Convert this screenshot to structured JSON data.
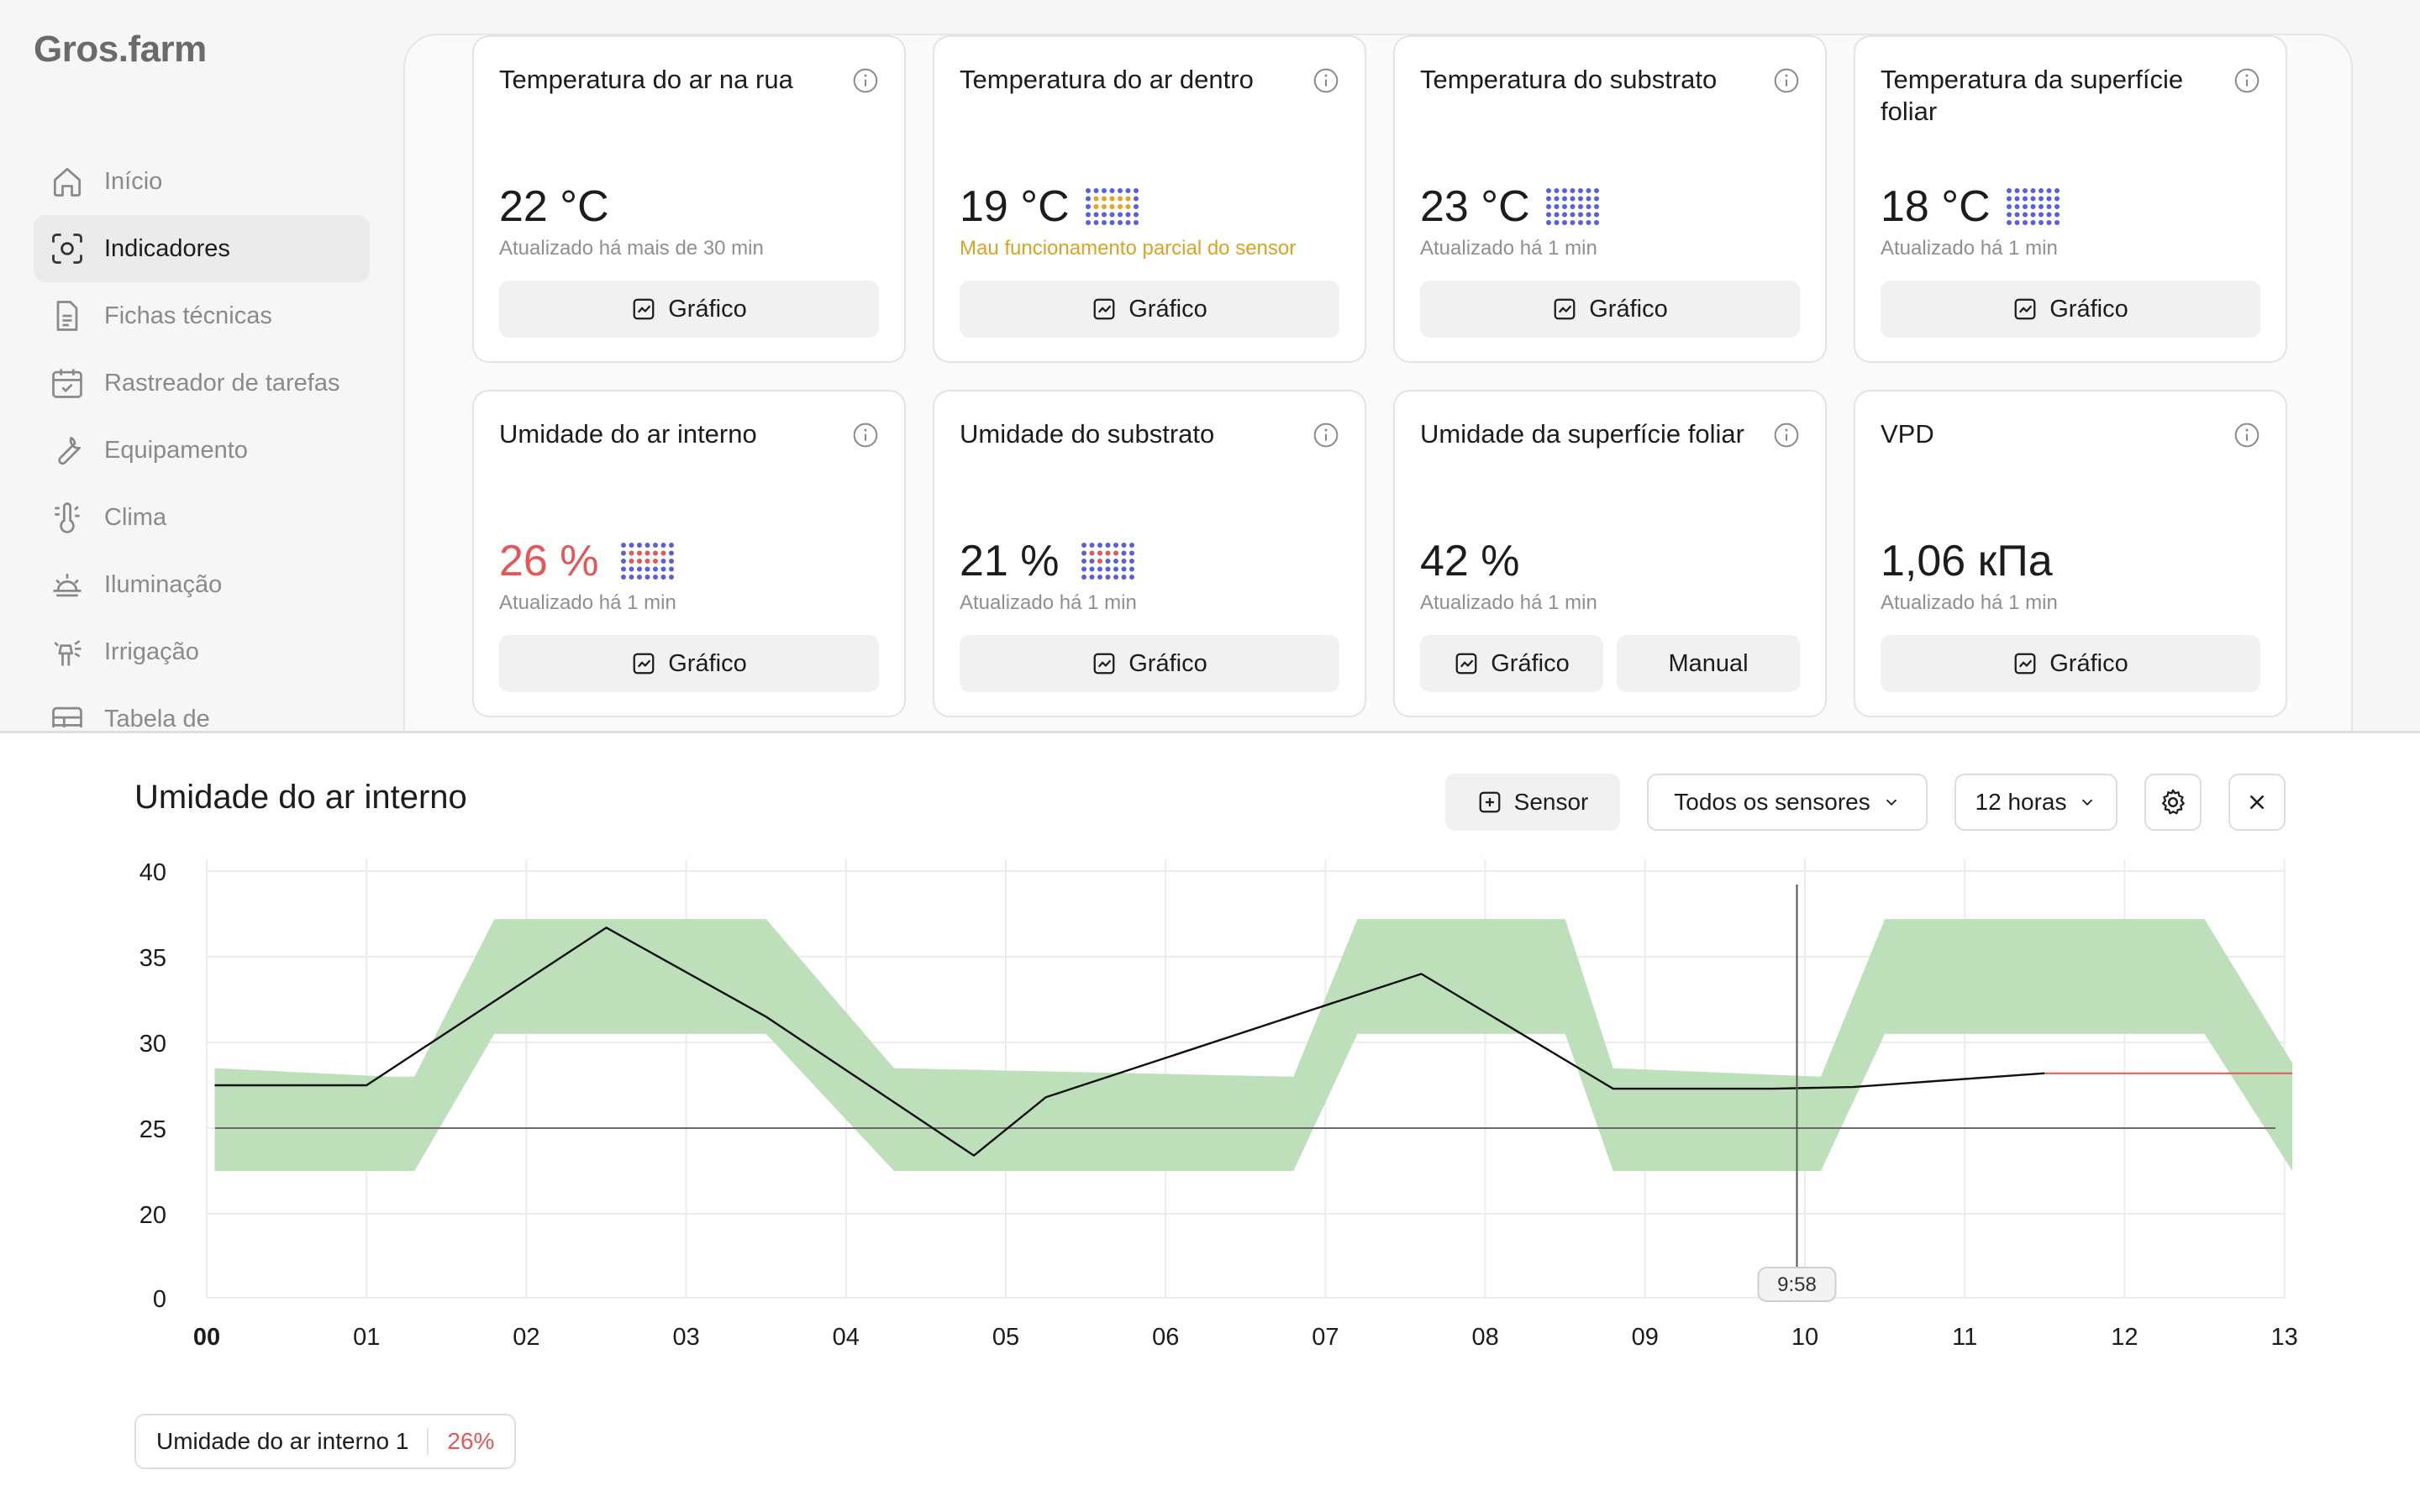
{
  "app": {
    "logo": "Gros.farm"
  },
  "sidebar": {
    "items": [
      {
        "label": "Início",
        "icon": "home-icon",
        "active": false
      },
      {
        "label": "Indicadores",
        "icon": "indicators-icon",
        "active": true
      },
      {
        "label": "Fichas técnicas",
        "icon": "document-icon",
        "active": false
      },
      {
        "label": "Rastreador de tarefas",
        "icon": "calendar-icon",
        "active": false
      },
      {
        "label": "Equipamento",
        "icon": "wrench-icon",
        "active": false
      },
      {
        "label": "Clima",
        "icon": "thermometer-icon",
        "active": false
      },
      {
        "label": "Iluminação",
        "icon": "sunrise-icon",
        "active": false
      },
      {
        "label": "Irrigação",
        "icon": "sprinkler-icon",
        "active": false
      },
      {
        "label": "Tabela de",
        "icon": "table-icon",
        "active": false
      }
    ]
  },
  "cards": [
    {
      "title": "Temperatura do ar na rua",
      "value": "22 °C",
      "status": "Atualizado há mais de 30 min",
      "status_type": "normal",
      "dots": "none",
      "buttons": [
        "Gráfico"
      ]
    },
    {
      "title": "Temperatura do ar dentro",
      "value": "19 °C",
      "status": "Mau funcionamento parcial do sensor",
      "status_type": "warn",
      "dots": "warn",
      "buttons": [
        "Gráfico"
      ]
    },
    {
      "title": "Temperatura do substrato",
      "value": "23 °C",
      "status": "Atualizado há 1 min",
      "status_type": "normal",
      "dots": "ok",
      "buttons": [
        "Gráfico"
      ]
    },
    {
      "title": "Temperatura da superfície foliar",
      "value": "18 °C",
      "status": "Atualizado há 1 min",
      "status_type": "normal",
      "dots": "ok",
      "buttons": [
        "Gráfico"
      ]
    },
    {
      "title": "Umidade do ar interno",
      "value": "26 %",
      "status": "Atualizado há 1 min",
      "status_type": "alert",
      "dots": "mixed",
      "buttons": [
        "Gráfico"
      ]
    },
    {
      "title": "Umidade do substrato",
      "value": "21 %",
      "status": "Atualizado há 1 min",
      "status_type": "normal",
      "dots": "mixed2",
      "buttons": [
        "Gráfico"
      ]
    },
    {
      "title": "Umidade da superfície foliar",
      "value": "42 %",
      "status": "Atualizado há 1 min",
      "status_type": "normal",
      "dots": "none",
      "buttons": [
        "Gráfico",
        "Manual"
      ]
    },
    {
      "title": "VPD",
      "value": "1,06 кПа",
      "status": "Atualizado há 1 min",
      "status_type": "normal",
      "dots": "none",
      "buttons": [
        "Gráfico"
      ]
    }
  ],
  "chart_panel": {
    "title": "Umidade do ar interno",
    "sensor_button": "Sensor",
    "sensor_filter": "Todos os sensores",
    "period": "12 horas",
    "legend": {
      "name": "Umidade do ar interno 1",
      "value": "26%"
    },
    "cursor_label": "9:58"
  },
  "chart_data": {
    "type": "line",
    "x_ticks": [
      "00",
      "01",
      "02",
      "03",
      "04",
      "05",
      "06",
      "07",
      "08",
      "09",
      "10",
      "11",
      "12",
      "13"
    ],
    "y_ticks": [
      0,
      20,
      25,
      30,
      35,
      40
    ],
    "ylim": [
      0,
      40
    ],
    "series": [
      {
        "name": "Umidade do ar interno 1",
        "x": [
          0.05,
          1.0,
          2.5,
          3.5,
          4.8,
          5.25,
          7.6,
          8.8,
          9.8,
          10.3,
          11.5
        ],
        "y": [
          27.5,
          27.5,
          36.7,
          31.5,
          23.4,
          26.8,
          34.0,
          27.3,
          27.3,
          27.4,
          28.2
        ]
      },
      {
        "name": "forecast",
        "x": [
          11.5,
          13.05
        ],
        "y": [
          28.2,
          28.2
        ]
      }
    ],
    "threshold": 25,
    "band": {
      "x": [
        0.05,
        1.15,
        1.3,
        1.8,
        3.5,
        4.3,
        6.8,
        7.2,
        8.5,
        8.8,
        10.1,
        10.5,
        11.8,
        12.5,
        13.05
      ],
      "upper": [
        28.5,
        28.0,
        28.0,
        37.2,
        37.2,
        28.5,
        28.0,
        37.2,
        37.2,
        28.5,
        28.0,
        37.2,
        37.2,
        37.2,
        28.8
      ],
      "lower": [
        22.5,
        22.5,
        22.5,
        30.5,
        30.5,
        22.5,
        22.5,
        30.5,
        30.5,
        22.5,
        22.5,
        30.5,
        30.5,
        30.5,
        22.5
      ]
    },
    "cursor_x": 9.95,
    "grid": true
  }
}
